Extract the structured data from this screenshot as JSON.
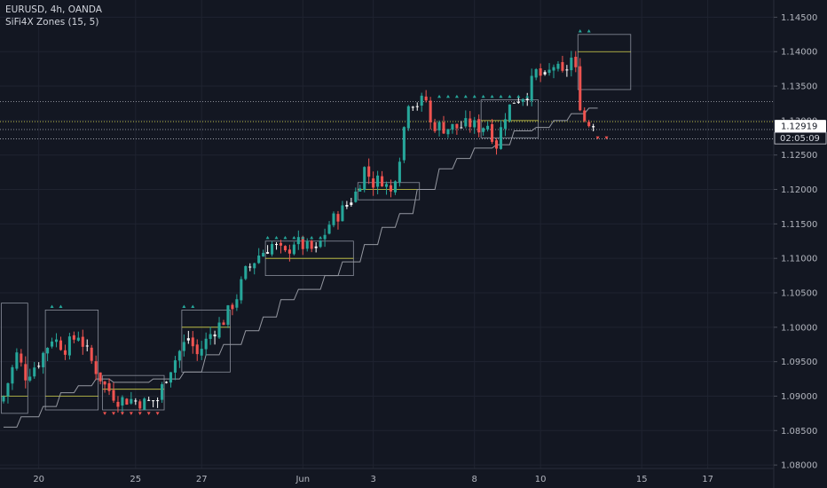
{
  "header": {
    "symbol_line": "EURUSD, 4h, OANDA",
    "indicator_line": "SiFi4X Zones (15, 5)"
  },
  "colors": {
    "background": "#131722",
    "grid": "#1f2330",
    "bull": "#26a69a",
    "bear": "#ef5350",
    "doji": "#ffffff",
    "zone": "#8a8f9c",
    "midline": "#d4d44a",
    "trail": "#9598a1",
    "dot_line": "#b2b5be",
    "price_tag_bg": "#ffffff",
    "axis_text": "#b2b5be"
  },
  "price_labels": {
    "current": "1.12919",
    "countdown": "02:05:09"
  },
  "chart_data": {
    "type": "candlestick",
    "xlabel": "",
    "ylabel": "",
    "ylim": [
      1.0795,
      1.1475
    ],
    "y_ticks": [
      "1.14500",
      "1.14000",
      "1.13500",
      "1.13000",
      "1.12500",
      "1.12000",
      "1.11500",
      "1.11000",
      "1.10500",
      "1.10000",
      "1.09500",
      "1.09000",
      "1.08500",
      "1.08000"
    ],
    "y_tick_values": [
      1.145,
      1.14,
      1.135,
      1.13,
      1.125,
      1.12,
      1.115,
      1.11,
      1.105,
      1.1,
      1.095,
      1.09,
      1.085,
      1.08
    ],
    "x_ticks": [
      {
        "label": "20",
        "bar": 8
      },
      {
        "label": "25",
        "bar": 30
      },
      {
        "label": "27",
        "bar": 45
      },
      {
        "label": "Jun",
        "bar": 68
      },
      {
        "label": "3",
        "bar": 84
      },
      {
        "label": "8",
        "bar": 107
      },
      {
        "label": "10",
        "bar": 122
      },
      {
        "label": "15",
        "bar": 145
      },
      {
        "label": "17",
        "bar": 160
      }
    ],
    "waypoints": [
      [
        0,
        1.09
      ],
      [
        3,
        1.096
      ],
      [
        5,
        1.093
      ],
      [
        8,
        1.095
      ],
      [
        11,
        1.0985
      ],
      [
        14,
        1.097
      ],
      [
        17,
        1.099
      ],
      [
        20,
        1.095
      ],
      [
        23,
        1.0915
      ],
      [
        26,
        1.0895
      ],
      [
        29,
        1.0895
      ],
      [
        32,
        1.089
      ],
      [
        35,
        1.0895
      ],
      [
        37,
        1.093
      ],
      [
        40,
        1.0965
      ],
      [
        42,
        1.0985
      ],
      [
        44,
        1.096
      ],
      [
        47,
        1.099
      ],
      [
        50,
        1.101
      ],
      [
        53,
        1.1045
      ],
      [
        55,
        1.108
      ],
      [
        58,
        1.1105
      ],
      [
        61,
        1.112
      ],
      [
        64,
        1.1105
      ],
      [
        66,
        1.1125
      ],
      [
        69,
        1.1115
      ],
      [
        71,
        1.111
      ],
      [
        74,
        1.115
      ],
      [
        77,
        1.117
      ],
      [
        80,
        1.1195
      ],
      [
        82,
        1.123
      ],
      [
        84,
        1.121
      ],
      [
        86,
        1.1215
      ],
      [
        88,
        1.1195
      ],
      [
        90,
        1.125
      ],
      [
        92,
        1.133
      ],
      [
        94,
        1.1325
      ],
      [
        96,
        1.133
      ],
      [
        97,
        1.1295
      ],
      [
        100,
        1.129
      ],
      [
        103,
        1.129
      ],
      [
        106,
        1.1295
      ],
      [
        108,
        1.129
      ],
      [
        110,
        1.1295
      ],
      [
        112,
        1.1265
      ],
      [
        114,
        1.131
      ],
      [
        116,
        1.133
      ],
      [
        119,
        1.134
      ],
      [
        121,
        1.137
      ],
      [
        123,
        1.136
      ],
      [
        125,
        1.138
      ],
      [
        127,
        1.1365
      ],
      [
        129,
        1.139
      ],
      [
        130,
        1.137
      ],
      [
        131,
        1.1325
      ],
      [
        132,
        1.13
      ],
      [
        133,
        1.1295
      ],
      [
        134,
        1.1292
      ]
    ],
    "zones": [
      {
        "from": 0,
        "to": 5,
        "high": 1.1035,
        "low": 1.0875,
        "mid": 1.09
      },
      {
        "from": 10,
        "to": 21,
        "high": 1.1025,
        "low": 1.088,
        "mid": 1.09
      },
      {
        "from": 23,
        "to": 36,
        "high": 1.093,
        "low": 1.088,
        "mid": 1.091
      },
      {
        "from": 41,
        "to": 51,
        "high": 1.1025,
        "low": 1.0935,
        "mid": 1.1
      },
      {
        "from": 60,
        "to": 79,
        "high": 1.1125,
        "low": 1.1075,
        "mid": 1.11
      },
      {
        "from": 81,
        "to": 94,
        "high": 1.121,
        "low": 1.1185,
        "mid": 1.12
      },
      {
        "from": 109,
        "to": 121,
        "high": 1.133,
        "low": 1.1275,
        "mid": 1.13
      },
      {
        "from": 131,
        "to": 142,
        "high": 1.1425,
        "low": 1.1345,
        "mid": 1.14
      }
    ],
    "trail": [
      [
        0,
        1.0855
      ],
      [
        3,
        1.0855
      ],
      [
        4,
        1.087
      ],
      [
        8,
        1.087
      ],
      [
        9,
        1.0885
      ],
      [
        12,
        1.0885
      ],
      [
        13,
        1.0905
      ],
      [
        16,
        1.0905
      ],
      [
        17,
        1.0915
      ],
      [
        20,
        1.0915
      ],
      [
        21,
        1.0925
      ],
      [
        24,
        1.0925
      ],
      [
        25,
        1.092
      ],
      [
        33,
        1.092
      ],
      [
        34,
        1.0925
      ],
      [
        40,
        1.0925
      ],
      [
        41,
        1.0935
      ],
      [
        45,
        1.0935
      ],
      [
        46,
        1.096
      ],
      [
        49,
        1.096
      ],
      [
        50,
        1.0975
      ],
      [
        54,
        1.0975
      ],
      [
        55,
        1.0995
      ],
      [
        58,
        1.0995
      ],
      [
        59,
        1.1015
      ],
      [
        62,
        1.1015
      ],
      [
        63,
        1.104
      ],
      [
        66,
        1.104
      ],
      [
        67,
        1.1055
      ],
      [
        72,
        1.1055
      ],
      [
        73,
        1.1075
      ],
      [
        76,
        1.1075
      ],
      [
        77,
        1.1095
      ],
      [
        81,
        1.1095
      ],
      [
        82,
        1.112
      ],
      [
        85,
        1.112
      ],
      [
        86,
        1.1145
      ],
      [
        89,
        1.1145
      ],
      [
        90,
        1.1165
      ],
      [
        93,
        1.1165
      ],
      [
        94,
        1.12
      ],
      [
        98,
        1.12
      ],
      [
        99,
        1.123
      ],
      [
        102,
        1.123
      ],
      [
        103,
        1.1245
      ],
      [
        106,
        1.1245
      ],
      [
        107,
        1.126
      ],
      [
        111,
        1.126
      ],
      [
        112,
        1.1265
      ],
      [
        115,
        1.1265
      ],
      [
        116,
        1.1285
      ],
      [
        120,
        1.1285
      ],
      [
        121,
        1.129
      ],
      [
        124,
        1.129
      ],
      [
        125,
        1.13
      ],
      [
        128,
        1.13
      ],
      [
        129,
        1.131
      ],
      [
        132,
        1.131
      ],
      [
        133,
        1.1318
      ],
      [
        135,
        1.1318
      ]
    ],
    "marks_up": [
      {
        "from": 11,
        "to": 13,
        "price": 1.103
      },
      {
        "from": 41,
        "to": 43,
        "price": 1.103
      },
      {
        "from": 60,
        "to": 73,
        "price": 1.113
      },
      {
        "from": 99,
        "to": 119,
        "price": 1.1335
      },
      {
        "from": 131,
        "to": 133,
        "price": 1.143
      }
    ],
    "marks_down": [
      {
        "from": 23,
        "to": 35,
        "price": 1.0875
      },
      {
        "from": 135,
        "to": 137,
        "price": 1.1275
      }
    ],
    "h_lines": [
      {
        "price": 1.13275,
        "color": "#b2b5be"
      },
      {
        "price": 1.12985,
        "color": "#d4d44a"
      },
      {
        "price": 1.1287,
        "color": "#b2b5be"
      },
      {
        "price": 1.12735,
        "color": "#b2b5be"
      }
    ],
    "bar_range": [
      0,
      175
    ],
    "last_price": 1.12919
  }
}
